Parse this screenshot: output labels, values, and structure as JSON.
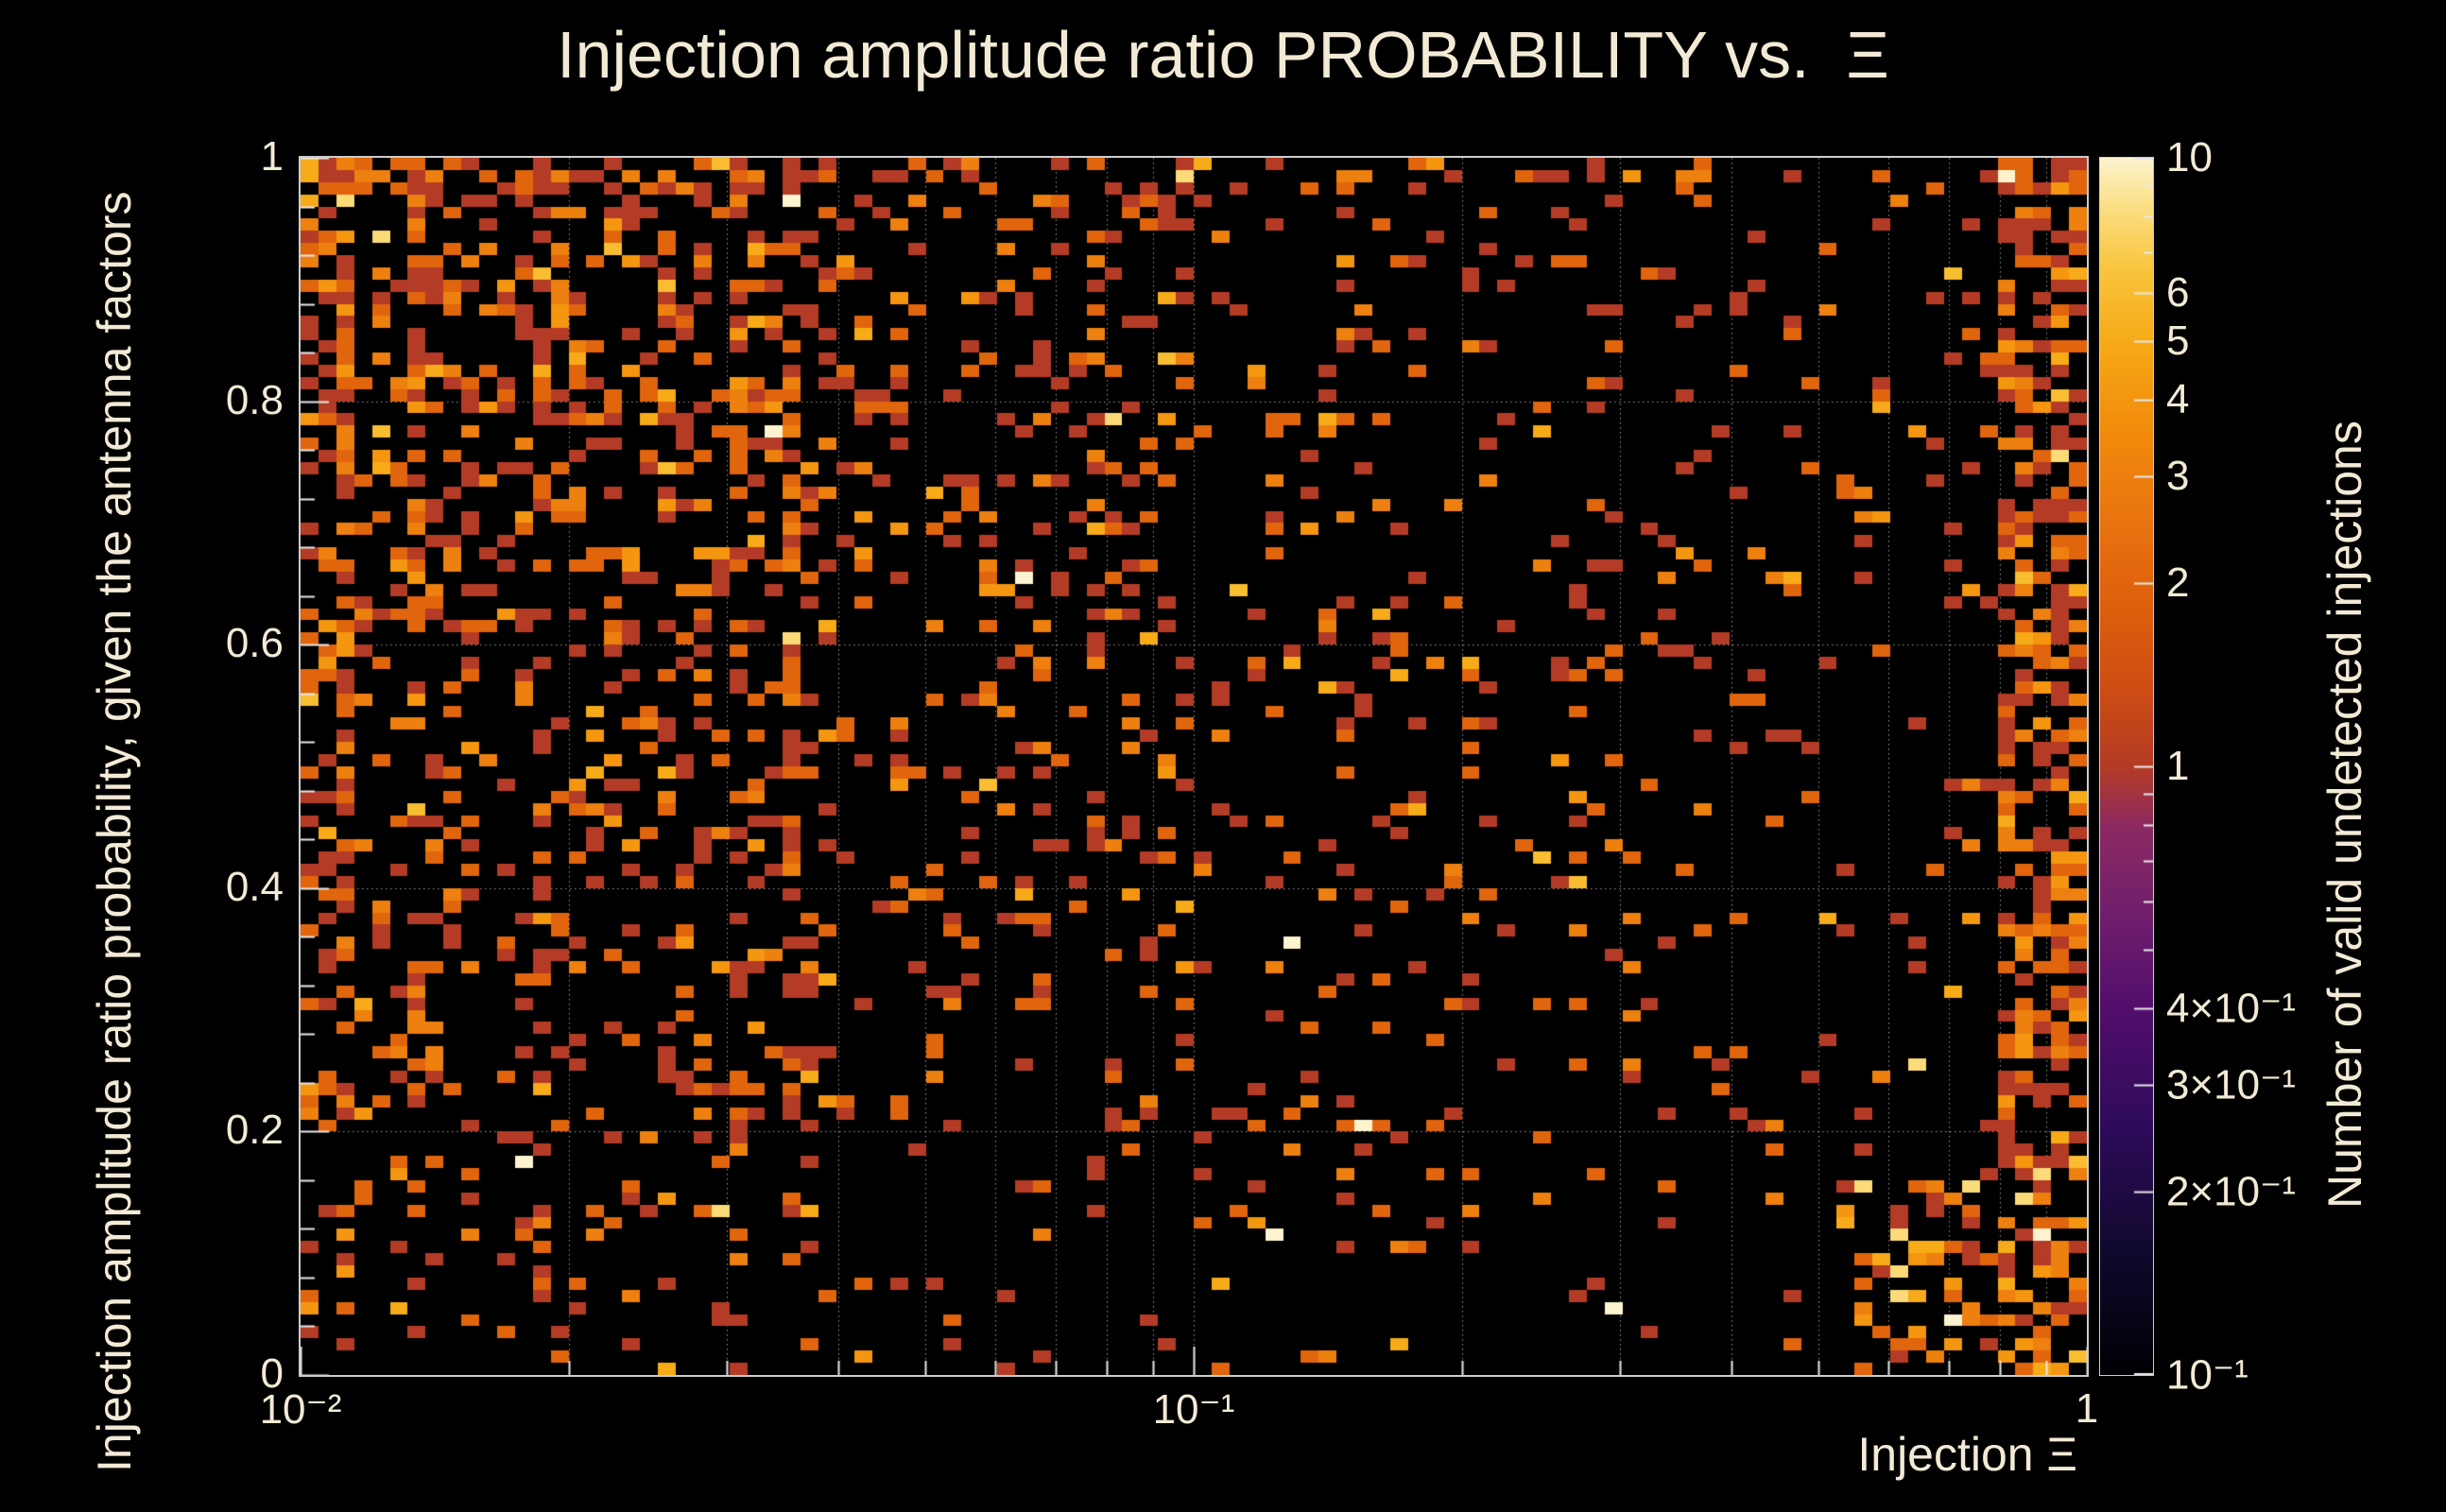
{
  "colors": {
    "background": "#000000",
    "text": "#f3ead6",
    "axis": "#cccccc",
    "grid": "#9a9a9a",
    "tick": "#e8e8e8"
  },
  "chart_data": {
    "type": "heatmap",
    "title": "Injection amplitude ratio PROBABILITY vs.  Ξ",
    "xlabel": "Injection Ξ",
    "ylabel": "Injection amplitude ratio probability, given the antenna factors",
    "zlabel": "Number of valid undetected injections",
    "x_scale": "log",
    "x_range": [
      0.01,
      1
    ],
    "y_scale": "linear",
    "y_range": [
      0,
      1
    ],
    "z_scale": "log",
    "z_range": [
      0.1,
      10
    ],
    "nx": 100,
    "ny": 100,
    "seed": 20240613,
    "grid": {
      "x_minor": true,
      "y_major_step": 0.2
    },
    "x_ticks": [
      {
        "label": "10⁻²",
        "value": 0.01
      },
      {
        "label": "10⁻¹",
        "value": 0.1
      },
      {
        "label": "1",
        "value": 1
      }
    ],
    "y_ticks": [
      {
        "label": "1",
        "value": 1
      },
      {
        "label": "0.8",
        "value": 0.8
      },
      {
        "label": "0.6",
        "value": 0.6
      },
      {
        "label": "0.4",
        "value": 0.4
      },
      {
        "label": "0.2",
        "value": 0.2
      },
      {
        "label": "0",
        "value": 0
      }
    ],
    "z_ticks_major": [
      {
        "label": "10",
        "value": 10
      },
      {
        "label": "6",
        "value": 6
      },
      {
        "label": "5",
        "value": 5
      },
      {
        "label": "4",
        "value": 4
      },
      {
        "label": "3",
        "value": 3
      },
      {
        "label": "2",
        "value": 2
      },
      {
        "label": "1",
        "value": 1
      },
      {
        "label": "4×10⁻¹",
        "value": 0.4
      },
      {
        "label": "3×10⁻¹",
        "value": 0.3
      },
      {
        "label": "2×10⁻¹",
        "value": 0.2
      },
      {
        "label": "10⁻¹",
        "value": 0.1
      }
    ],
    "z_ticks_minor": [
      7,
      8,
      9,
      0.5,
      0.6,
      0.7,
      0.8,
      0.9
    ],
    "palette": [
      {
        "t": 0.0,
        "color": "#000004"
      },
      {
        "t": 0.1,
        "color": "#10092d"
      },
      {
        "t": 0.2,
        "color": "#2d0b59"
      },
      {
        "t": 0.3,
        "color": "#520e6c"
      },
      {
        "t": 0.38,
        "color": "#711f6d"
      },
      {
        "t": 0.45,
        "color": "#8c2a62"
      },
      {
        "t": 0.5,
        "color": "#b43b25"
      },
      {
        "t": 0.56,
        "color": "#cc4c14"
      },
      {
        "t": 0.63,
        "color": "#dd5f0c"
      },
      {
        "t": 0.7,
        "color": "#e97310"
      },
      {
        "t": 0.78,
        "color": "#f28d0c"
      },
      {
        "t": 0.85,
        "color": "#f7ab18"
      },
      {
        "t": 0.91,
        "color": "#f9c63f"
      },
      {
        "t": 0.96,
        "color": "#fbdf84"
      },
      {
        "t": 1.0,
        "color": "#fdf4cf"
      }
    ],
    "value_levels": [
      1,
      2,
      3,
      4,
      5,
      6,
      8,
      10
    ],
    "value_cdf": [
      0.45,
      0.75,
      0.88,
      0.94,
      0.97,
      0.985,
      0.995,
      1.0
    ],
    "cluster_value_cdf": [
      0.3,
      0.52,
      0.68,
      0.8,
      0.89,
      0.94,
      0.98,
      1.0
    ],
    "density": {
      "base_regions": [
        [
          0.3,
          0.26
        ],
        [
          0.5,
          0.15
        ],
        [
          0.75,
          0.1
        ],
        [
          0.955,
          0.075
        ],
        [
          1.01,
          0.5
        ]
      ],
      "y_gradient": [
        0.5,
        1.3
      ],
      "low_y_damp": 0.75,
      "y_top_boost": 1.5,
      "left_edge_boost": 1.4,
      "band_boost": 1.25,
      "column_boost_prob": 0.15,
      "column_boost_factor": 1.7,
      "cluster": {
        "x0": 0.86,
        "x1": 0.985,
        "y1": 0.16,
        "density": 0.33
      }
    }
  }
}
